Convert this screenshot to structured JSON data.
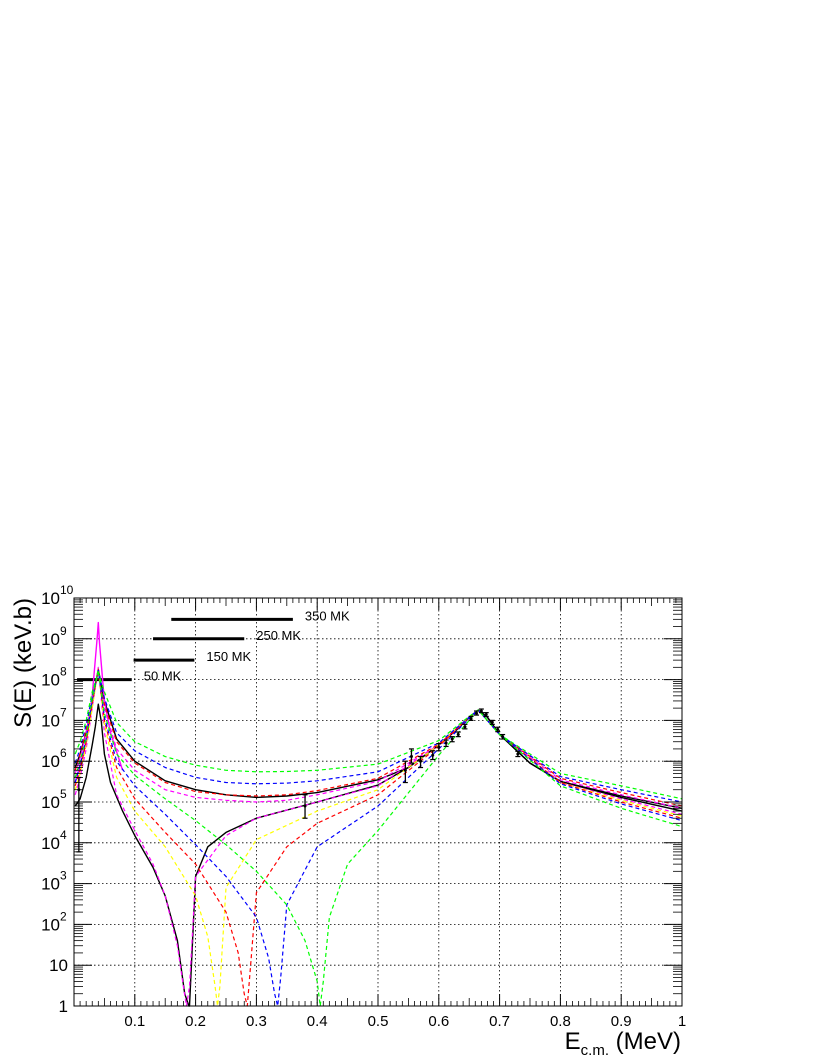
{
  "chart_data": {
    "type": "line",
    "title": "",
    "xlabel": "E",
    "xlabel_sub": "c.m.",
    "xlabel_unit": " (MeV)",
    "ylabel": "S(E) (keV.b)",
    "xlim": [
      0,
      1
    ],
    "ylim": [
      1,
      10000000000
    ],
    "yscale": "log",
    "grid": true,
    "x_ticks": [
      {
        "v": 0.1,
        "label": "0.1"
      },
      {
        "v": 0.2,
        "label": "0.2"
      },
      {
        "v": 0.3,
        "label": "0.3"
      },
      {
        "v": 0.4,
        "label": "0.4"
      },
      {
        "v": 0.5,
        "label": "0.5"
      },
      {
        "v": 0.6,
        "label": "0.6"
      },
      {
        "v": 0.7,
        "label": "0.7"
      },
      {
        "v": 0.8,
        "label": "0.8"
      },
      {
        "v": 0.9,
        "label": "0.9"
      },
      {
        "v": 1.0,
        "label": "1"
      }
    ],
    "y_ticks": [
      {
        "v": 1,
        "label": "1",
        "exp": ""
      },
      {
        "v": 10,
        "label": "10",
        "exp": ""
      },
      {
        "v": 100,
        "label": "10",
        "exp": "2"
      },
      {
        "v": 1000,
        "label": "10",
        "exp": "3"
      },
      {
        "v": 10000,
        "label": "10",
        "exp": "4"
      },
      {
        "v": 100000,
        "label": "10",
        "exp": "5"
      },
      {
        "v": 1000000,
        "label": "10",
        "exp": "6"
      },
      {
        "v": 10000000,
        "label": "10",
        "exp": "7"
      },
      {
        "v": 100000000,
        "label": "10",
        "exp": "8"
      },
      {
        "v": 1000000000,
        "label": "10",
        "exp": "9"
      },
      {
        "v": 10000000000,
        "label": "10",
        "exp": "10"
      }
    ],
    "gamow_windows": [
      {
        "label": "50 MK",
        "x0": 0.005,
        "x1": 0.095,
        "y": 100000000
      },
      {
        "label": "150 MK",
        "x0": 0.098,
        "x1": 0.198,
        "y": 300000000
      },
      {
        "label": "250 MK",
        "x0": 0.13,
        "x1": 0.28,
        "y": 1000000000
      },
      {
        "label": "350 MK",
        "x0": 0.16,
        "x1": 0.36,
        "y": 3000000000
      }
    ],
    "series": [
      {
        "color": "#000000",
        "dash": "solid",
        "x": [
          0.002,
          0.01,
          0.02,
          0.03,
          0.035,
          0.04,
          0.045,
          0.05,
          0.06,
          0.08,
          0.1,
          0.13,
          0.15,
          0.17,
          0.182,
          0.189,
          0.19,
          0.2,
          0.22,
          0.25,
          0.3,
          0.4,
          0.5,
          0.55,
          0.6,
          0.63,
          0.65,
          0.665,
          0.68,
          0.7,
          0.75,
          0.8,
          0.9,
          1.0
        ],
        "y": [
          80000,
          120000,
          400000,
          2500000,
          7000000,
          25000000,
          9000000,
          1500000,
          300000,
          60000,
          15000,
          2500,
          500,
          40,
          2,
          1,
          1,
          1500,
          8000,
          18000,
          40000,
          100000,
          260000,
          700000,
          2500000,
          6000000,
          12000000,
          18000000,
          12000000,
          4500000,
          900000,
          320000,
          140000,
          70000
        ]
      },
      {
        "color": "#000000",
        "dash": "solid",
        "x": [
          0.002,
          0.01,
          0.02,
          0.03,
          0.04,
          0.05,
          0.07,
          0.1,
          0.15,
          0.2,
          0.25,
          0.3,
          0.35,
          0.4,
          0.5,
          0.55,
          0.6,
          0.63,
          0.65,
          0.665,
          0.68,
          0.7,
          0.75,
          0.8,
          0.9,
          1.0
        ],
        "y": [
          700000,
          1500000,
          5000000,
          30000000,
          180000000,
          30000000,
          3500000,
          1000000,
          330000,
          200000,
          150000,
          130000,
          140000,
          170000,
          350000,
          700000,
          2500000,
          6000000,
          12000000,
          18000000,
          12000000,
          4500000,
          900000,
          320000,
          130000,
          60000
        ]
      },
      {
        "color": "#ff00ff",
        "dash": "solid",
        "x": [
          0.002,
          0.01,
          0.02,
          0.03,
          0.038,
          0.04,
          0.042,
          0.05,
          0.06,
          0.08
        ],
        "y": [
          300000,
          800000,
          3000000,
          40000000,
          1000000000,
          2500000000,
          800000000,
          30000000,
          5000000,
          600000
        ]
      },
      {
        "color": "#ff00ff",
        "dash": "dashed",
        "x": [
          0.002,
          0.01,
          0.02,
          0.03,
          0.04,
          0.05,
          0.07,
          0.1,
          0.13,
          0.15,
          0.17,
          0.18,
          0.185,
          0.19,
          0.2,
          0.25,
          0.3,
          0.4,
          0.5,
          0.6,
          0.65,
          0.665,
          0.7,
          0.8,
          0.9,
          1.0
        ],
        "y": [
          150000,
          400000,
          2000000,
          20000000,
          200000000,
          5000000,
          150000,
          20000,
          3000,
          500,
          30,
          3,
          1,
          3,
          1500,
          15000,
          40000,
          100000,
          250000,
          2500000,
          12000000,
          18000000,
          4500000,
          300000,
          120000,
          50000
        ]
      },
      {
        "color": "#ff00ff",
        "dash": "dashed",
        "x": [
          0.002,
          0.01,
          0.02,
          0.03,
          0.04,
          0.05,
          0.07,
          0.1,
          0.15,
          0.2,
          0.25,
          0.3,
          0.35,
          0.4,
          0.5,
          0.6,
          0.65,
          0.665,
          0.7,
          0.8,
          0.9,
          1.0
        ],
        "y": [
          500000,
          1200000,
          5000000,
          30000000,
          150000000,
          20000000,
          2000000,
          600000,
          200000,
          130000,
          110000,
          100000,
          110000,
          150000,
          320000,
          2500000,
          12000000,
          18000000,
          4500000,
          350000,
          150000,
          70000
        ]
      },
      {
        "color": "#ffff00",
        "dash": "dashed",
        "x": [
          0.002,
          0.01,
          0.02,
          0.03,
          0.04,
          0.05,
          0.07,
          0.1,
          0.15,
          0.2,
          0.22,
          0.232,
          0.236,
          0.24,
          0.25,
          0.3,
          0.4,
          0.5,
          0.6,
          0.65,
          0.665,
          0.7,
          0.8,
          0.9,
          1.0
        ],
        "y": [
          200000,
          500000,
          2500000,
          20000000,
          180000000,
          8000000,
          400000,
          60000,
          8000,
          500,
          50,
          3,
          1,
          3,
          800,
          12000,
          60000,
          200000,
          2500000,
          12000000,
          18000000,
          4500000,
          300000,
          110000,
          45000
        ]
      },
      {
        "color": "#ff0000",
        "dash": "dashed",
        "x": [
          0.002,
          0.01,
          0.02,
          0.03,
          0.04,
          0.05,
          0.07,
          0.1,
          0.15,
          0.2,
          0.25,
          0.27,
          0.28,
          0.285,
          0.29,
          0.3,
          0.35,
          0.4,
          0.5,
          0.6,
          0.65,
          0.665,
          0.7,
          0.8,
          0.9,
          1.0
        ],
        "y": [
          250000,
          600000,
          3000000,
          25000000,
          180000000,
          10000000,
          700000,
          120000,
          18000,
          3000,
          200,
          20,
          2,
          1,
          8,
          600,
          8000,
          30000,
          150000,
          2300000,
          12000000,
          18000000,
          4500000,
          300000,
          100000,
          40000
        ]
      },
      {
        "color": "#ff0000",
        "dash": "dashed",
        "x": [
          0.002,
          0.01,
          0.02,
          0.03,
          0.04,
          0.05,
          0.07,
          0.1,
          0.15,
          0.2,
          0.25,
          0.3,
          0.35,
          0.4,
          0.5,
          0.6,
          0.65,
          0.665,
          0.7,
          0.8,
          0.9,
          1.0
        ],
        "y": [
          600000,
          1500000,
          6000000,
          35000000,
          160000000,
          25000000,
          3000000,
          900000,
          300000,
          180000,
          150000,
          140000,
          150000,
          190000,
          380000,
          2600000,
          12000000,
          18000000,
          4500000,
          380000,
          170000,
          80000
        ]
      },
      {
        "color": "#0000ff",
        "dash": "dashed",
        "x": [
          0.002,
          0.01,
          0.02,
          0.03,
          0.04,
          0.05,
          0.07,
          0.1,
          0.15,
          0.2,
          0.25,
          0.3,
          0.32,
          0.33,
          0.335,
          0.34,
          0.35,
          0.4,
          0.5,
          0.6,
          0.65,
          0.665,
          0.7,
          0.8,
          0.9,
          1.0
        ],
        "y": [
          300000,
          800000,
          3500000,
          30000000,
          170000000,
          12000000,
          1000000,
          250000,
          50000,
          9000,
          1500,
          150,
          15,
          2,
          1,
          5,
          300,
          8000,
          80000,
          2000000,
          11000000,
          18000000,
          4500000,
          280000,
          90000,
          35000
        ]
      },
      {
        "color": "#0000ff",
        "dash": "dashed",
        "x": [
          0.002,
          0.01,
          0.02,
          0.03,
          0.04,
          0.05,
          0.07,
          0.1,
          0.15,
          0.2,
          0.25,
          0.3,
          0.35,
          0.4,
          0.5,
          0.6,
          0.65,
          0.665,
          0.7,
          0.8,
          0.9,
          1.0
        ],
        "y": [
          900000,
          2000000,
          8000000,
          40000000,
          160000000,
          35000000,
          5000000,
          1800000,
          700000,
          400000,
          300000,
          280000,
          290000,
          330000,
          550000,
          2800000,
          12000000,
          18000000,
          4500000,
          420000,
          200000,
          100000
        ]
      },
      {
        "color": "#00ff00",
        "dash": "dashed",
        "x": [
          0.002,
          0.01,
          0.02,
          0.03,
          0.04,
          0.05,
          0.07,
          0.1,
          0.15,
          0.2,
          0.25,
          0.3,
          0.35,
          0.38,
          0.4,
          0.405,
          0.41,
          0.42,
          0.45,
          0.5,
          0.6,
          0.65,
          0.665,
          0.7,
          0.8,
          0.9,
          1.0
        ],
        "y": [
          400000,
          1000000,
          4000000,
          35000000,
          170000000,
          15000000,
          1500000,
          450000,
          120000,
          35000,
          9000,
          2000,
          300,
          40,
          4,
          1,
          4,
          150,
          3000,
          20000,
          1400000,
          10000000,
          18000000,
          4500000,
          250000,
          70000,
          25000
        ]
      },
      {
        "color": "#00ff00",
        "dash": "dashed",
        "x": [
          0.002,
          0.01,
          0.02,
          0.03,
          0.04,
          0.05,
          0.07,
          0.1,
          0.15,
          0.2,
          0.25,
          0.3,
          0.35,
          0.4,
          0.5,
          0.6,
          0.65,
          0.665,
          0.7,
          0.8,
          0.9,
          1.0
        ],
        "y": [
          1500000,
          3000000,
          10000000,
          50000000,
          150000000,
          50000000,
          9000000,
          3000000,
          1300000,
          800000,
          600000,
          550000,
          560000,
          600000,
          850000,
          3200000,
          12500000,
          18000000,
          4500000,
          500000,
          250000,
          120000
        ]
      }
    ],
    "data_points": [
      {
        "x": 0.008,
        "y": 200000,
        "lo": 6000,
        "hi": 400000
      },
      {
        "x": 0.38,
        "y": 80000,
        "lo": 40000,
        "hi": 150000
      },
      {
        "x": 0.545,
        "y": 600000,
        "lo": 300000,
        "hi": 1000000
      },
      {
        "x": 0.555,
        "y": 1300000,
        "lo": 900000,
        "hi": 2000000
      },
      {
        "x": 0.57,
        "y": 1000000,
        "lo": 700000,
        "hi": 1300000
      },
      {
        "x": 0.59,
        "y": 1400000,
        "lo": 1100000,
        "hi": 1800000
      },
      {
        "x": 0.6,
        "y": 2200000,
        "lo": 1800000,
        "hi": 2700000
      },
      {
        "x": 0.612,
        "y": 2800000,
        "lo": 2300000,
        "hi": 3300000
      },
      {
        "x": 0.622,
        "y": 3500000,
        "lo": 3000000,
        "hi": 4000000
      },
      {
        "x": 0.632,
        "y": 4500000,
        "lo": 4000000,
        "hi": 5200000
      },
      {
        "x": 0.643,
        "y": 7000000,
        "lo": 6200000,
        "hi": 8000000
      },
      {
        "x": 0.653,
        "y": 11000000,
        "lo": 10000000,
        "hi": 12500000
      },
      {
        "x": 0.662,
        "y": 15000000,
        "lo": 13500000,
        "hi": 17000000
      },
      {
        "x": 0.67,
        "y": 17000000,
        "lo": 15500000,
        "hi": 19000000
      },
      {
        "x": 0.678,
        "y": 14000000,
        "lo": 12500000,
        "hi": 15500000
      },
      {
        "x": 0.688,
        "y": 9000000,
        "lo": 8000000,
        "hi": 10000000
      },
      {
        "x": 0.697,
        "y": 6000000,
        "lo": 5300000,
        "hi": 6800000
      },
      {
        "x": 0.705,
        "y": 4000000,
        "lo": 3500000,
        "hi": 4500000
      },
      {
        "x": 0.73,
        "y": 1500000,
        "lo": 1300000,
        "hi": 1750000
      }
    ]
  }
}
